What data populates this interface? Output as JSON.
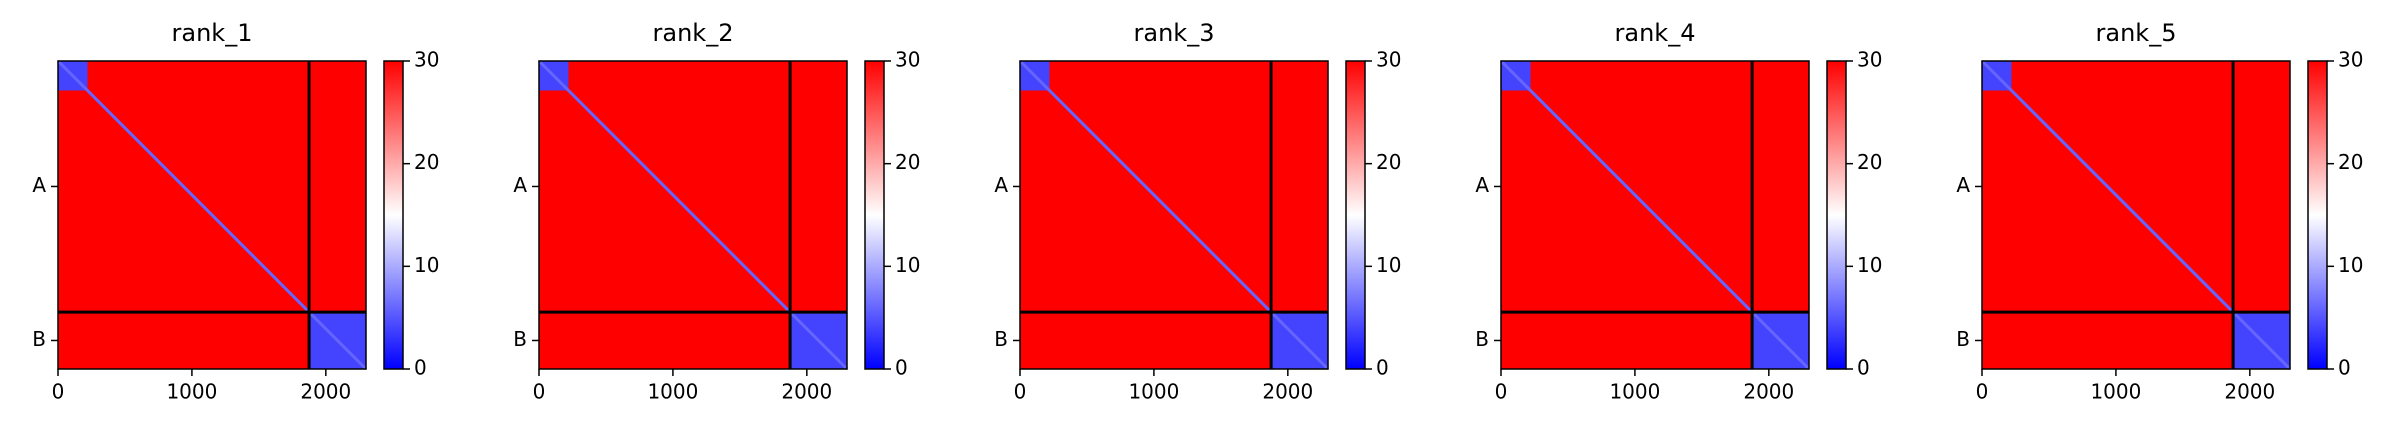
{
  "chart_data": [
    {
      "type": "heatmap",
      "title": "rank_1",
      "xlim": [
        0,
        2300
      ],
      "ylim": [
        2300,
        0
      ],
      "xticks": [
        0,
        1000,
        2000
      ],
      "yticks": [
        {
          "value": 937,
          "label": "A"
        },
        {
          "value": 2087,
          "label": "B"
        }
      ],
      "boundaries": [
        1875
      ],
      "clim": [
        0,
        30
      ],
      "cticks": [
        0,
        10,
        20,
        30
      ],
      "background": 30,
      "diagonal": 6,
      "blocks": [
        {
          "x": [
            0,
            220
          ],
          "y": [
            0,
            220
          ],
          "value": 4
        },
        {
          "x": [
            1875,
            2300
          ],
          "y": [
            1875,
            2300
          ],
          "value": 4
        }
      ]
    },
    {
      "type": "heatmap",
      "title": "rank_2",
      "xlim": [
        0,
        2300
      ],
      "ylim": [
        2300,
        0
      ],
      "xticks": [
        0,
        1000,
        2000
      ],
      "yticks": [
        {
          "value": 937,
          "label": "A"
        },
        {
          "value": 2087,
          "label": "B"
        }
      ],
      "boundaries": [
        1875
      ],
      "clim": [
        0,
        30
      ],
      "cticks": [
        0,
        10,
        20,
        30
      ],
      "background": 30,
      "diagonal": 6,
      "blocks": [
        {
          "x": [
            0,
            220
          ],
          "y": [
            0,
            220
          ],
          "value": 4
        },
        {
          "x": [
            1875,
            2300
          ],
          "y": [
            1875,
            2300
          ],
          "value": 4
        }
      ]
    },
    {
      "type": "heatmap",
      "title": "rank_3",
      "xlim": [
        0,
        2300
      ],
      "ylim": [
        2300,
        0
      ],
      "xticks": [
        0,
        1000,
        2000
      ],
      "yticks": [
        {
          "value": 937,
          "label": "A"
        },
        {
          "value": 2087,
          "label": "B"
        }
      ],
      "boundaries": [
        1875
      ],
      "clim": [
        0,
        30
      ],
      "cticks": [
        0,
        10,
        20,
        30
      ],
      "background": 30,
      "diagonal": 6,
      "blocks": [
        {
          "x": [
            0,
            220
          ],
          "y": [
            0,
            220
          ],
          "value": 4
        },
        {
          "x": [
            1875,
            2300
          ],
          "y": [
            1875,
            2300
          ],
          "value": 4
        }
      ]
    },
    {
      "type": "heatmap",
      "title": "rank_4",
      "xlim": [
        0,
        2300
      ],
      "ylim": [
        2300,
        0
      ],
      "xticks": [
        0,
        1000,
        2000
      ],
      "yticks": [
        {
          "value": 937,
          "label": "A"
        },
        {
          "value": 2087,
          "label": "B"
        }
      ],
      "boundaries": [
        1875
      ],
      "clim": [
        0,
        30
      ],
      "cticks": [
        0,
        10,
        20,
        30
      ],
      "background": 30,
      "diagonal": 6,
      "blocks": [
        {
          "x": [
            0,
            220
          ],
          "y": [
            0,
            220
          ],
          "value": 4
        },
        {
          "x": [
            1875,
            2300
          ],
          "y": [
            1875,
            2300
          ],
          "value": 4
        }
      ]
    },
    {
      "type": "heatmap",
      "title": "rank_5",
      "xlim": [
        0,
        2300
      ],
      "ylim": [
        2300,
        0
      ],
      "xticks": [
        0,
        1000,
        2000
      ],
      "yticks": [
        {
          "value": 937,
          "label": "A"
        },
        {
          "value": 2087,
          "label": "B"
        }
      ],
      "boundaries": [
        1875
      ],
      "clim": [
        0,
        30
      ],
      "cticks": [
        0,
        10,
        20,
        30
      ],
      "background": 30,
      "diagonal": 6,
      "blocks": [
        {
          "x": [
            0,
            220
          ],
          "y": [
            0,
            220
          ],
          "value": 4
        },
        {
          "x": [
            1875,
            2300
          ],
          "y": [
            1875,
            2300
          ],
          "value": 4
        }
      ]
    }
  ]
}
